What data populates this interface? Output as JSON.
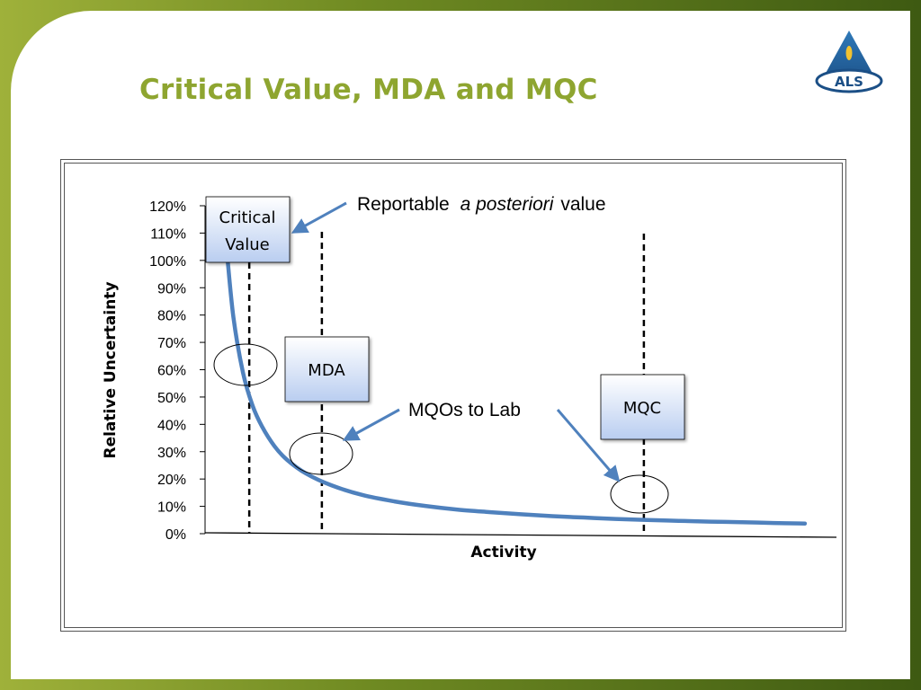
{
  "slide": {
    "title": "Critical Value, MDA and MQC",
    "logo_text": "ALS"
  },
  "chart_data": {
    "type": "line",
    "title": "",
    "xlabel": "Activity",
    "ylabel": "Relative Uncertainty",
    "yticks": [
      "0%",
      "10%",
      "20%",
      "30%",
      "40%",
      "50%",
      "60%",
      "70%",
      "80%",
      "90%",
      "100%",
      "110%",
      "120%"
    ],
    "ylim": [
      0,
      120
    ],
    "xlim": [
      0,
      1
    ],
    "grid": false,
    "series": [
      {
        "color": "#4f81bd",
        "x": [
          0.035,
          0.045,
          0.06,
          0.075,
          0.09,
          0.11,
          0.13,
          0.16,
          0.2,
          0.25,
          0.3,
          0.35,
          0.4,
          0.45,
          0.5,
          0.55,
          0.6,
          0.65,
          0.7,
          0.75,
          0.8,
          0.85,
          0.9,
          0.95
        ],
        "y": [
          102,
          79,
          59,
          47,
          39.3,
          32,
          27,
          22,
          17.7,
          14.1,
          11.8,
          10.1,
          8.8,
          7.9,
          7.1,
          6.4,
          5.9,
          5.4,
          5.0,
          4.7,
          4.4,
          4.2,
          3.9,
          3.7
        ]
      }
    ],
    "markers": [
      {
        "label": "Critical\nValue",
        "x": 0.07
      },
      {
        "label": "MDA",
        "x": 0.185
      },
      {
        "label": "MQC",
        "x": 0.695
      }
    ],
    "annotations": {
      "reportable_pre": "Reportable",
      "reportable_italic": "a posteriori",
      "reportable_post": "value",
      "mqos": "MQOs to Lab"
    },
    "boxes": {
      "critical_line1": "Critical",
      "critical_line2": "Value",
      "mda": "MDA",
      "mqc": "MQC"
    }
  }
}
